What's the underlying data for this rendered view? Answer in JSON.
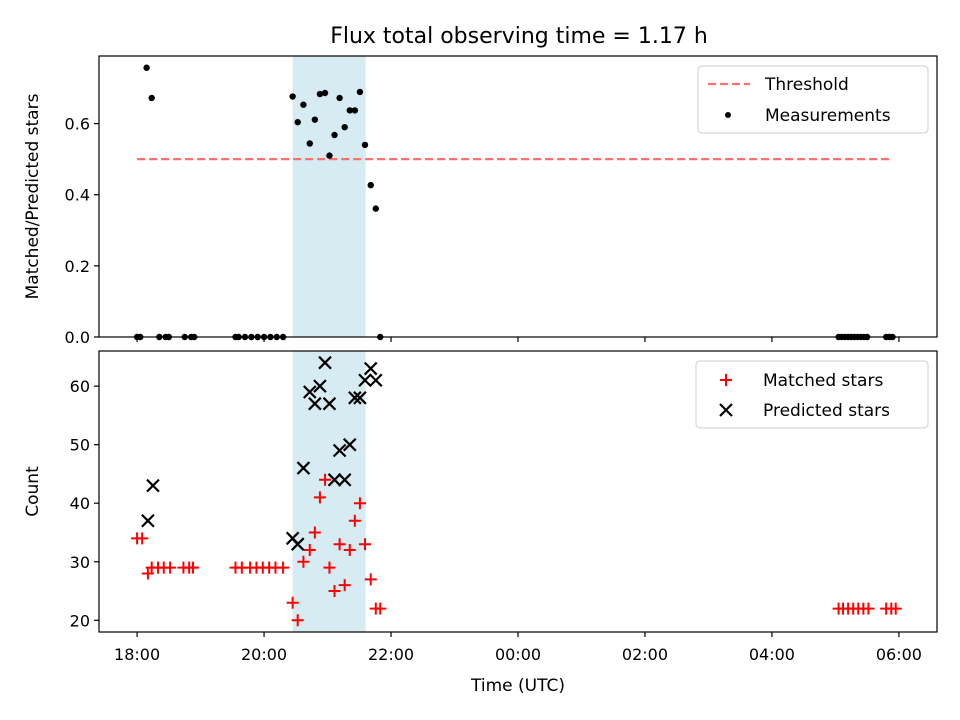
{
  "title": "Flux total observing time = 1.17 h",
  "chart_data": [
    {
      "type": "scatter",
      "panel": "top",
      "ylabel": "Matched/Predicted stars",
      "xlim": [
        -0.6,
        12.6
      ],
      "ylim": [
        0,
        0.79
      ],
      "x_hours_from_18_00": true,
      "yticks": [
        0.0,
        0.2,
        0.4,
        0.6
      ],
      "ytick_labels": [
        "0.0",
        "0.2",
        "0.4",
        "0.6"
      ],
      "legend": "top-right",
      "highlight_span": {
        "x0": 2.45,
        "x1": 3.6,
        "color": "#add8e6"
      },
      "threshold": {
        "name": "Threshold",
        "y": 0.5,
        "x0": 0,
        "x1": 11.9,
        "color": "#ff7070"
      },
      "series": [
        {
          "name": "Measurements",
          "color": "#000000",
          "points": [
            [
              0.0,
              0.0
            ],
            [
              0.05,
              0.0
            ],
            [
              0.15,
              0.757
            ],
            [
              0.23,
              0.672
            ],
            [
              0.35,
              0.0
            ],
            [
              0.45,
              0.0
            ],
            [
              0.5,
              0.0
            ],
            [
              0.75,
              0.0
            ],
            [
              0.85,
              0.0
            ],
            [
              0.9,
              0.0
            ],
            [
              1.55,
              0.0
            ],
            [
              1.6,
              0.0
            ],
            [
              1.7,
              0.0
            ],
            [
              1.8,
              0.0
            ],
            [
              1.9,
              0.0
            ],
            [
              2.0,
              0.0
            ],
            [
              2.1,
              0.0
            ],
            [
              2.2,
              0.0
            ],
            [
              2.3,
              0.0
            ],
            [
              2.45,
              0.676
            ],
            [
              2.53,
              0.604
            ],
            [
              2.62,
              0.653
            ],
            [
              2.72,
              0.544
            ],
            [
              2.8,
              0.611
            ],
            [
              2.88,
              0.683
            ],
            [
              2.96,
              0.686
            ],
            [
              3.03,
              0.51
            ],
            [
              3.11,
              0.568
            ],
            [
              3.19,
              0.672
            ],
            [
              3.27,
              0.59
            ],
            [
              3.35,
              0.637
            ],
            [
              3.43,
              0.637
            ],
            [
              3.51,
              0.689
            ],
            [
              3.59,
              0.54
            ],
            [
              3.68,
              0.427
            ],
            [
              3.76,
              0.361
            ],
            [
              3.83,
              0.0
            ],
            [
              11.05,
              0.0
            ],
            [
              11.1,
              0.0
            ],
            [
              11.15,
              0.0
            ],
            [
              11.2,
              0.0
            ],
            [
              11.25,
              0.0
            ],
            [
              11.3,
              0.0
            ],
            [
              11.35,
              0.0
            ],
            [
              11.4,
              0.0
            ],
            [
              11.45,
              0.0
            ],
            [
              11.5,
              0.0
            ],
            [
              11.8,
              0.0
            ],
            [
              11.85,
              0.0
            ],
            [
              11.9,
              0.0
            ]
          ]
        }
      ]
    },
    {
      "type": "scatter",
      "panel": "bottom",
      "xlabel": "Time (UTC)",
      "ylabel": "Count",
      "xlim": [
        -0.6,
        12.6
      ],
      "ylim": [
        18,
        66
      ],
      "yticks": [
        20,
        30,
        40,
        50,
        60
      ],
      "ytick_labels": [
        "20",
        "30",
        "40",
        "50",
        "60"
      ],
      "xticks": [
        0,
        2,
        4,
        6,
        8,
        10,
        12
      ],
      "xtick_labels": [
        "18:00",
        "20:00",
        "22:00",
        "00:00",
        "02:00",
        "04:00",
        "06:00"
      ],
      "legend": "top-right",
      "highlight_span": {
        "x0": 2.45,
        "x1": 3.6,
        "color": "#add8e6"
      },
      "series": [
        {
          "name": "Matched stars",
          "marker": "plus",
          "color": "#ff0000",
          "points": [
            [
              0.0,
              34
            ],
            [
              0.08,
              34
            ],
            [
              0.17,
              28
            ],
            [
              0.23,
              29
            ],
            [
              0.33,
              29
            ],
            [
              0.42,
              29
            ],
            [
              0.52,
              29
            ],
            [
              0.73,
              29
            ],
            [
              0.82,
              29
            ],
            [
              0.88,
              29
            ],
            [
              1.55,
              29
            ],
            [
              1.65,
              29
            ],
            [
              1.78,
              29
            ],
            [
              1.88,
              29
            ],
            [
              1.98,
              29
            ],
            [
              2.08,
              29
            ],
            [
              2.18,
              29
            ],
            [
              2.3,
              29
            ],
            [
              2.45,
              23
            ],
            [
              2.53,
              20
            ],
            [
              2.62,
              30
            ],
            [
              2.72,
              32
            ],
            [
              2.8,
              35
            ],
            [
              2.88,
              41
            ],
            [
              2.96,
              44
            ],
            [
              3.03,
              29
            ],
            [
              3.11,
              25
            ],
            [
              3.19,
              33
            ],
            [
              3.27,
              26
            ],
            [
              3.35,
              32
            ],
            [
              3.43,
              37
            ],
            [
              3.51,
              40
            ],
            [
              3.59,
              33
            ],
            [
              3.68,
              27
            ],
            [
              3.76,
              22
            ],
            [
              3.83,
              22
            ],
            [
              11.05,
              22
            ],
            [
              11.12,
              22
            ],
            [
              11.2,
              22
            ],
            [
              11.28,
              22
            ],
            [
              11.36,
              22
            ],
            [
              11.44,
              22
            ],
            [
              11.52,
              22
            ],
            [
              11.8,
              22
            ],
            [
              11.88,
              22
            ],
            [
              11.95,
              22
            ]
          ]
        },
        {
          "name": "Predicted stars",
          "marker": "x",
          "color": "#000000",
          "points": [
            [
              0.17,
              37
            ],
            [
              0.25,
              43
            ],
            [
              2.45,
              34
            ],
            [
              2.53,
              33
            ],
            [
              2.62,
              46
            ],
            [
              2.72,
              59
            ],
            [
              2.8,
              57
            ],
            [
              2.88,
              60
            ],
            [
              2.96,
              64
            ],
            [
              3.03,
              57
            ],
            [
              3.11,
              44
            ],
            [
              3.19,
              49
            ],
            [
              3.27,
              44
            ],
            [
              3.35,
              50
            ],
            [
              3.43,
              58
            ],
            [
              3.51,
              58
            ],
            [
              3.59,
              61
            ],
            [
              3.68,
              63
            ],
            [
              3.76,
              61
            ]
          ]
        }
      ]
    }
  ]
}
